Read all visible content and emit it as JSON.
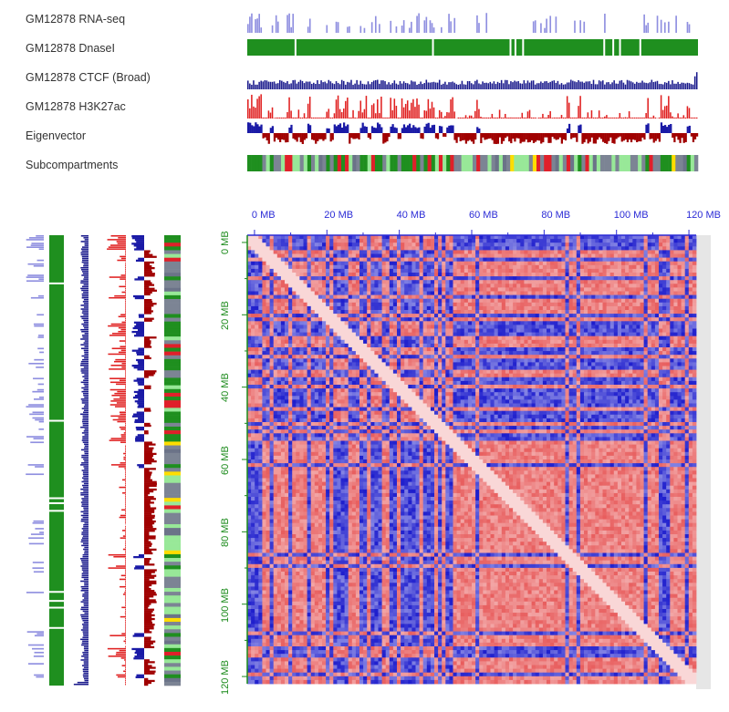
{
  "tracks": [
    {
      "name": "GM12878 RNA-seq",
      "color": "#8f8fe0",
      "kind": "sparse-bars"
    },
    {
      "name": "GM12878 DnaseI",
      "color": "#1f8f1f",
      "kind": "solid-band"
    },
    {
      "name": "GM12878 CTCF (Broad)",
      "color": "#1a1a8c",
      "kind": "dense-bars"
    },
    {
      "name": "GM12878 H3K27ac",
      "color": "#e02020",
      "kind": "dense-bars"
    },
    {
      "name": "Eigenvector",
      "color_pos": "#1a1aa6",
      "color_neg": "#a00000",
      "kind": "signed-bars"
    },
    {
      "name": "Subcompartments",
      "kind": "segments"
    }
  ],
  "heatmap": {
    "axis_unit": "MB",
    "top_ticks": [
      "0 MB",
      "20 MB",
      "40 MB",
      "60 MB",
      "80 MB",
      "100 MB",
      "120 MB"
    ],
    "left_ticks": [
      "0 MB",
      "20 MB",
      "40 MB",
      "60 MB",
      "80 MB",
      "100 MB",
      "120 MB"
    ],
    "range_mb": [
      -2,
      122
    ],
    "axis_color_top": "#2b2bd6",
    "axis_color_left": "#1a8a1a",
    "color_low": "#1d1dcf",
    "color_high": "#e02020",
    "compartment_breaks_mb": [
      2,
      4,
      5,
      9,
      10,
      18,
      21,
      30,
      31,
      33,
      37,
      41,
      45,
      47,
      50,
      51,
      52,
      53,
      55,
      60,
      63,
      66,
      68,
      73,
      76,
      84,
      88,
      89,
      90,
      96,
      101,
      104,
      106,
      108,
      109,
      112,
      115,
      119,
      120
    ]
  },
  "subcompartment_colors": {
    "A1": "#e0202a",
    "A2": "#1f8f1f",
    "B1": "#98e898",
    "B2": "#7c8494",
    "B3": "#6b7388",
    "B4": "#ffdd00"
  }
}
